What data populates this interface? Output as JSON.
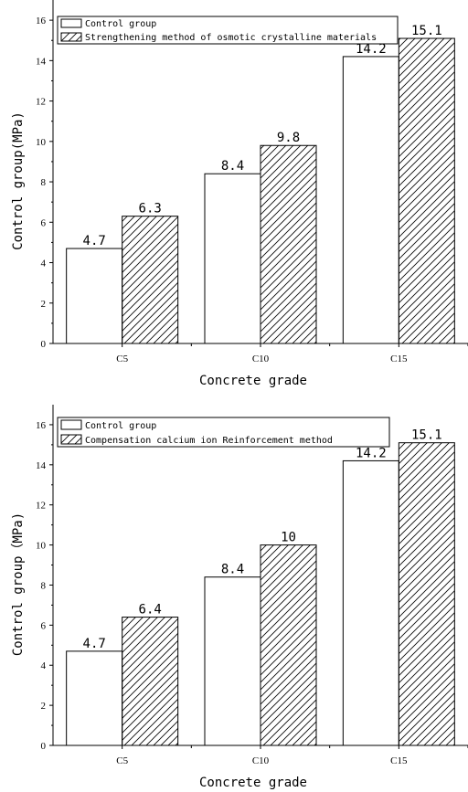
{
  "chart_data": [
    {
      "type": "bar",
      "categories": [
        "C5",
        "C10",
        "C15"
      ],
      "series": [
        {
          "name": "Control group",
          "values": [
            4.7,
            8.4,
            14.2
          ],
          "pattern": "none"
        },
        {
          "name": "Strengthening method of osmotic crystalline materials",
          "values": [
            6.3,
            9.8,
            15.1
          ],
          "pattern": "hatch"
        }
      ],
      "value_labels": [
        [
          "4.7",
          "8.4",
          "14.2"
        ],
        [
          "6.3",
          "9.8",
          "15.1"
        ]
      ],
      "xlabel": "Concrete grade",
      "ylabel": "Control group(MPa)",
      "ylim": [
        0,
        17
      ],
      "yticks": [
        0,
        2,
        4,
        6,
        8,
        10,
        12,
        14,
        16
      ],
      "grid": false,
      "legend": "top-left"
    },
    {
      "type": "bar",
      "categories": [
        "C5",
        "C10",
        "C15"
      ],
      "series": [
        {
          "name": "Control group",
          "values": [
            4.7,
            8.4,
            14.2
          ],
          "pattern": "none"
        },
        {
          "name": "Compensation calcium ion Reinforcement method",
          "values": [
            6.4,
            10,
            15.1
          ],
          "pattern": "hatch"
        }
      ],
      "value_labels": [
        [
          "4.7",
          "8.4",
          "14.2"
        ],
        [
          "6.4",
          "10",
          "15.1"
        ]
      ],
      "xlabel": "Concrete grade",
      "ylabel": "Control group（MPa)",
      "ylim": [
        0,
        17
      ],
      "yticks": [
        0,
        2,
        4,
        6,
        8,
        10,
        12,
        14,
        16
      ],
      "grid": false,
      "legend": "top-left"
    }
  ]
}
